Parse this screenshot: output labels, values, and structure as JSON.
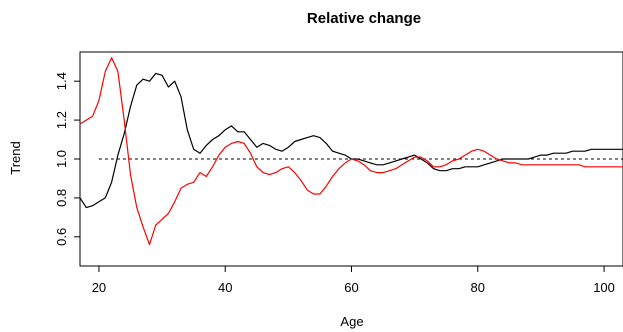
{
  "chart_data": {
    "type": "line",
    "title": "Relative change",
    "xlabel": "Age",
    "ylabel": "Trend",
    "xlim": [
      17,
      103
    ],
    "ylim": [
      0.45,
      1.55
    ],
    "xticks": [
      20,
      40,
      60,
      80,
      100
    ],
    "xtick_labels": [
      "20",
      "40",
      "60",
      "80",
      "100"
    ],
    "yticks": [
      0.6,
      0.8,
      1.0,
      1.2,
      1.4
    ],
    "ytick_labels": [
      "0.6",
      "0.8",
      "1.0",
      "1.2",
      "1.4"
    ],
    "grid": false,
    "reference_line": {
      "y": 1.0,
      "style": "dashed",
      "x_from": 20,
      "x_to": 103
    },
    "series": [
      {
        "color": "#000000",
        "x": [
          17,
          18,
          19,
          20,
          21,
          22,
          23,
          24,
          25,
          26,
          27,
          28,
          29,
          30,
          31,
          32,
          33,
          34,
          35,
          36,
          37,
          38,
          39,
          40,
          41,
          42,
          43,
          44,
          45,
          46,
          47,
          48,
          49,
          50,
          51,
          52,
          53,
          54,
          55,
          56,
          57,
          58,
          59,
          60,
          61,
          62,
          63,
          64,
          65,
          66,
          67,
          68,
          69,
          70,
          71,
          72,
          73,
          74,
          75,
          76,
          77,
          78,
          79,
          80,
          81,
          82,
          83,
          84,
          85,
          86,
          87,
          88,
          89,
          90,
          91,
          92,
          93,
          94,
          95,
          96,
          97,
          98,
          99,
          100,
          101,
          102,
          103
        ],
        "values": [
          0.8,
          0.75,
          0.76,
          0.78,
          0.8,
          0.88,
          1.02,
          1.13,
          1.27,
          1.38,
          1.41,
          1.4,
          1.44,
          1.43,
          1.37,
          1.4,
          1.32,
          1.15,
          1.05,
          1.03,
          1.07,
          1.1,
          1.12,
          1.15,
          1.17,
          1.14,
          1.14,
          1.1,
          1.06,
          1.08,
          1.07,
          1.05,
          1.04,
          1.06,
          1.09,
          1.1,
          1.11,
          1.12,
          1.11,
          1.08,
          1.04,
          1.03,
          1.02,
          1.0,
          1.0,
          0.99,
          0.98,
          0.97,
          0.97,
          0.98,
          0.99,
          1.0,
          1.01,
          1.02,
          1.0,
          0.98,
          0.95,
          0.94,
          0.94,
          0.95,
          0.95,
          0.96,
          0.96,
          0.96,
          0.97,
          0.98,
          0.99,
          1.0,
          1.0,
          1.0,
          1.0,
          1.0,
          1.01,
          1.02,
          1.02,
          1.03,
          1.03,
          1.03,
          1.04,
          1.04,
          1.04,
          1.05,
          1.05,
          1.05,
          1.05,
          1.05,
          1.05
        ]
      },
      {
        "color": "#ff0000",
        "x": [
          17,
          18,
          19,
          20,
          21,
          22,
          23,
          24,
          25,
          26,
          27,
          28,
          29,
          30,
          31,
          32,
          33,
          34,
          35,
          36,
          37,
          38,
          39,
          40,
          41,
          42,
          43,
          44,
          45,
          46,
          47,
          48,
          49,
          50,
          51,
          52,
          53,
          54,
          55,
          56,
          57,
          58,
          59,
          60,
          61,
          62,
          63,
          64,
          65,
          66,
          67,
          68,
          69,
          70,
          71,
          72,
          73,
          74,
          75,
          76,
          77,
          78,
          79,
          80,
          81,
          82,
          83,
          84,
          85,
          86,
          87,
          88,
          89,
          90,
          91,
          92,
          93,
          94,
          95,
          96,
          97,
          98,
          99,
          100,
          101,
          102,
          103
        ],
        "values": [
          1.18,
          1.2,
          1.22,
          1.3,
          1.45,
          1.52,
          1.45,
          1.2,
          0.92,
          0.75,
          0.65,
          0.56,
          0.66,
          0.69,
          0.72,
          0.78,
          0.85,
          0.87,
          0.88,
          0.93,
          0.91,
          0.96,
          1.02,
          1.06,
          1.08,
          1.09,
          1.08,
          1.03,
          0.96,
          0.93,
          0.92,
          0.93,
          0.95,
          0.96,
          0.93,
          0.89,
          0.84,
          0.82,
          0.82,
          0.86,
          0.91,
          0.95,
          0.98,
          1.0,
          0.99,
          0.97,
          0.94,
          0.93,
          0.93,
          0.94,
          0.95,
          0.97,
          0.99,
          1.01,
          1.01,
          0.99,
          0.96,
          0.96,
          0.97,
          0.99,
          1.0,
          1.02,
          1.04,
          1.05,
          1.04,
          1.02,
          1.0,
          0.99,
          0.98,
          0.98,
          0.97,
          0.97,
          0.97,
          0.97,
          0.97,
          0.97,
          0.97,
          0.97,
          0.97,
          0.97,
          0.96,
          0.96,
          0.96,
          0.96,
          0.96,
          0.96,
          0.96
        ]
      }
    ]
  }
}
